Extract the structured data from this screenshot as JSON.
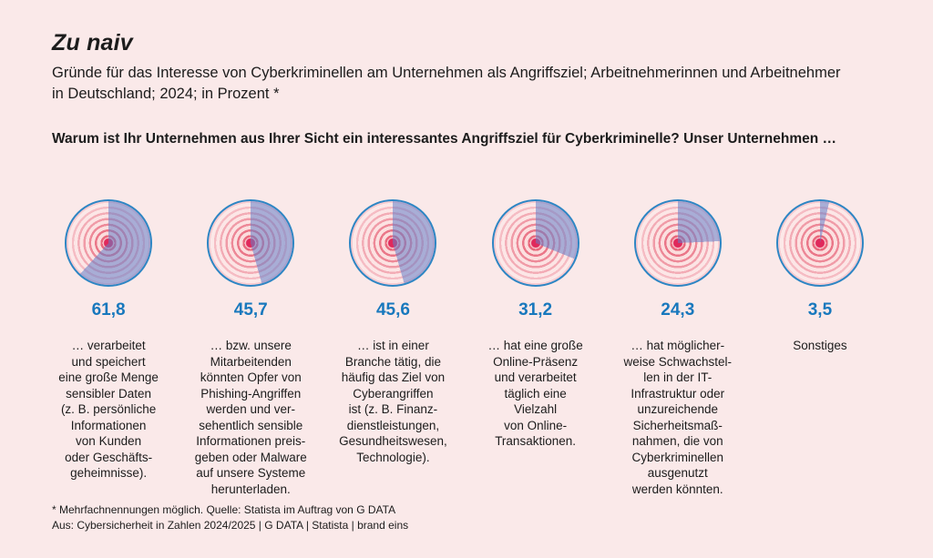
{
  "header": {
    "title": "Zu naiv",
    "subtitle": "Gründe für das Interesse von Cyberkriminellen am Unternehmen als Angriffsziel; Arbeitnehmerinnen und Arbeitnehmer in Deutschland; 2024; in Prozent *",
    "question": "Warum ist Ihr Unternehmen aus Ihrer Sicht ein interessantes Angriffsziel für Cyberkriminelle? Unser Unternehmen …"
  },
  "chart_data": {
    "type": "pie",
    "title": "Zu naiv",
    "unit": "Prozent",
    "note": "Mehrfachnennungen möglich",
    "legend_position": "none",
    "colors": {
      "background": "#fae9e9",
      "pie_outline": "#2e86c4",
      "pie_slice": "rgba(100,126,200,0.55)",
      "target_red": "#e0295b",
      "value_label": "#1878bd",
      "text": "#1c1c1c"
    },
    "series": [
      {
        "label": "61,8",
        "value": 61.8,
        "description": "… verarbeitet\nund speichert\neine große Menge\nsensibler Daten\n(z. B. persönliche\nInformationen\nvon Kunden\noder Geschäfts-\ngeheimnisse)."
      },
      {
        "label": "45,7",
        "value": 45.7,
        "description": "… bzw. unsere\nMitarbeitenden\nkönnten Opfer von\nPhishing-Angriffen\nwerden und ver-\nsehentlich sensible\nInformationen preis-\ngeben oder Malware\nauf unsere Systeme\nherunterladen."
      },
      {
        "label": "45,6",
        "value": 45.6,
        "description": "… ist in einer\nBranche tätig, die\nhäufig das Ziel von\nCyberangriffen\nist (z. B. Finanz-\ndienstleistungen,\nGesundheitswesen,\nTechnologie)."
      },
      {
        "label": "31,2",
        "value": 31.2,
        "description": "… hat eine große\nOnline-Präsenz\nund verarbeitet\ntäglich eine\nVielzahl\nvon Online-\nTransaktionen."
      },
      {
        "label": "24,3",
        "value": 24.3,
        "description": "… hat möglicher-\nweise Schwachstel-\nlen in der IT-\nInfrastruktur oder\nunzureichende\nSicherheitsmaß-\nnahmen, die von\nCyberkriminellen\nausgenutzt\nwerden könnten."
      },
      {
        "label": "3,5",
        "value": 3.5,
        "description": "Sonstiges"
      }
    ]
  },
  "footer": {
    "line1": "* Mehrfachnennungen möglich. Quelle: Statista im Auftrag von G DATA",
    "line2": "Aus: Cybersicherheit in Zahlen 2024/2025 | G DATA | Statista | brand eins"
  }
}
